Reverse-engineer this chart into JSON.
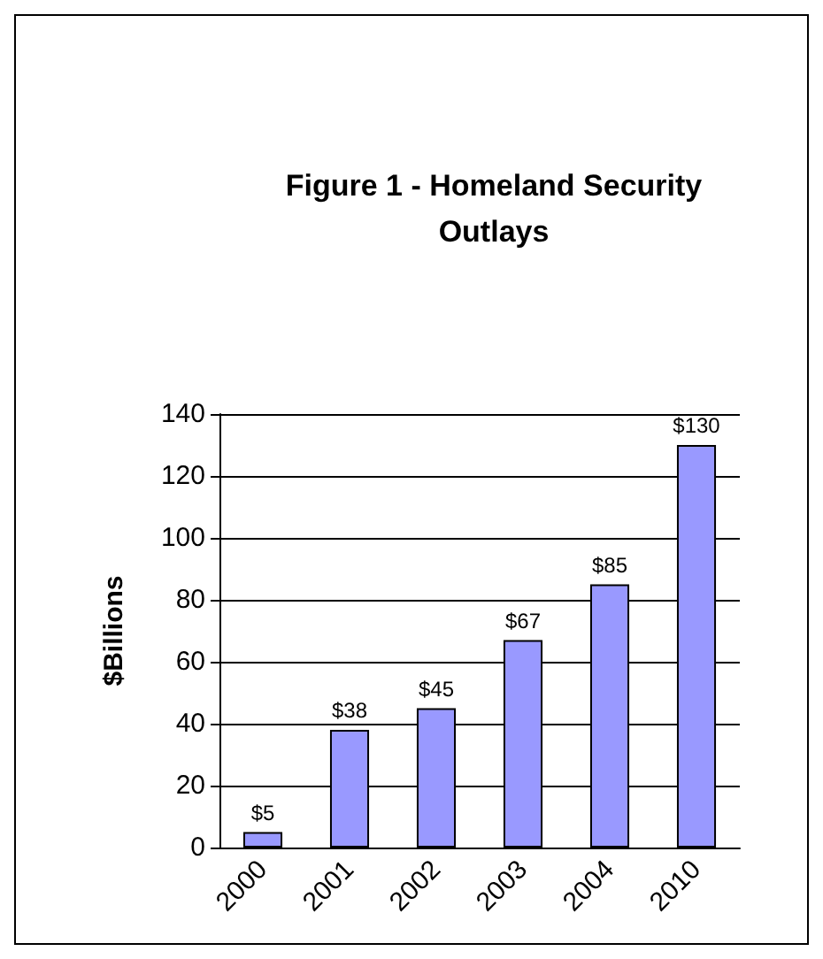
{
  "chart_data": {
    "type": "bar",
    "title": "Figure 1 - Homeland Security\nOutlays",
    "ylabel": "$Billions",
    "categories": [
      "2000",
      "2001",
      "2002",
      "2003",
      "2004",
      "2010"
    ],
    "values": [
      5,
      38,
      45,
      67,
      85,
      130
    ],
    "color": "#9999ff",
    "value_labels": [
      "$5",
      "$38",
      "$45",
      "$67",
      "$85",
      "$130"
    ],
    "ylim": [
      0,
      140
    ],
    "yticks": [
      0,
      20,
      40,
      60,
      80,
      100,
      120,
      140
    ],
    "grid": "y"
  }
}
